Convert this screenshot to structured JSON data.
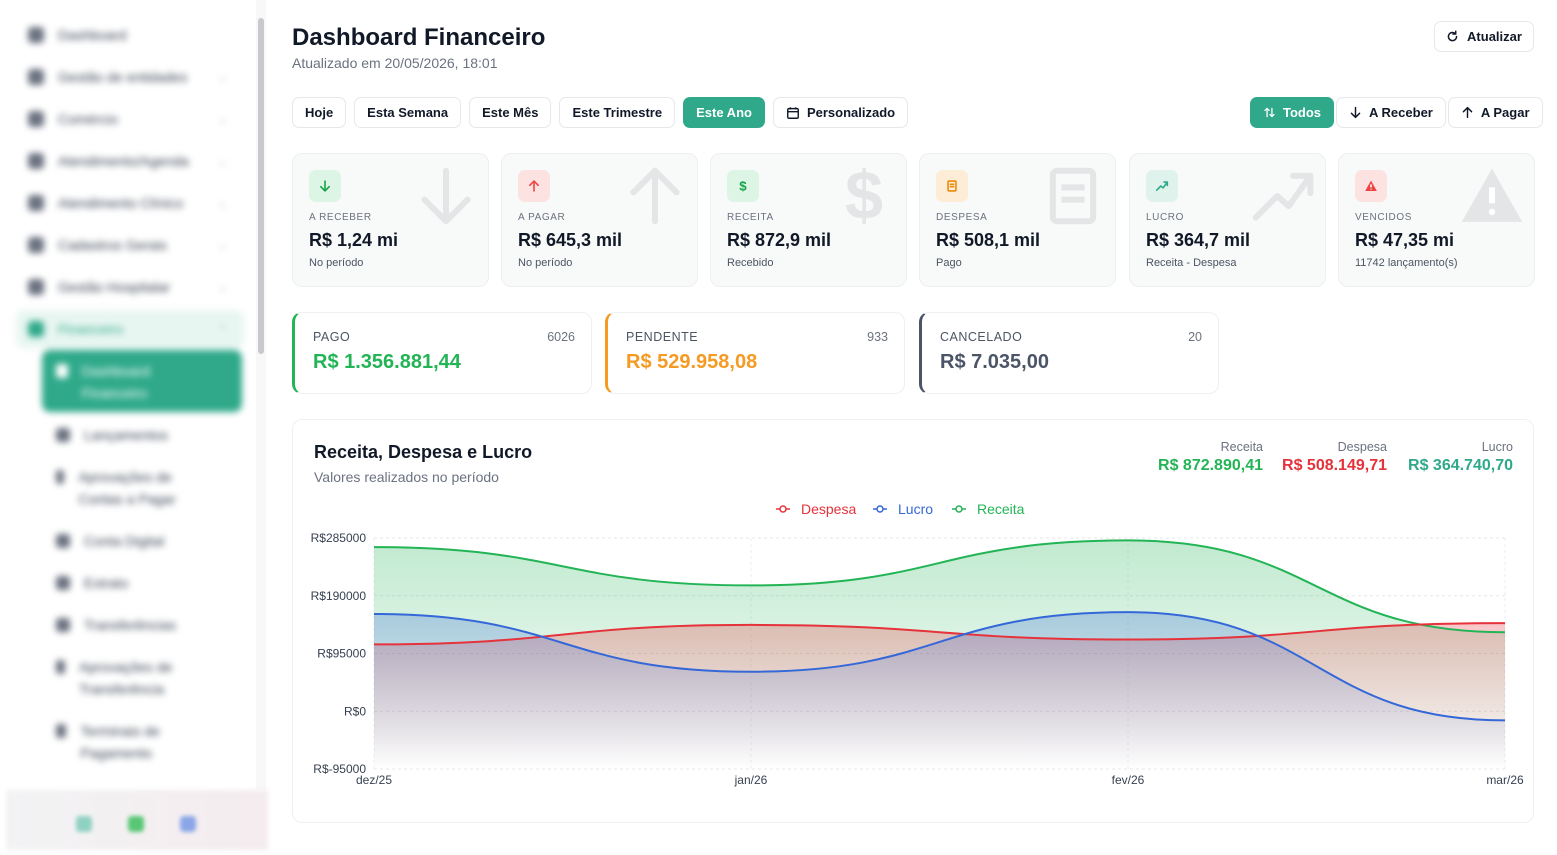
{
  "sidebar": {
    "items": [
      {
        "label": "Dashboard",
        "icon": "grid-icon",
        "has_chevron": false
      },
      {
        "label": "Gestão de entidades",
        "icon": "chart-bars-icon",
        "has_chevron": true
      },
      {
        "label": "Comércio",
        "icon": "store-icon",
        "has_chevron": true
      },
      {
        "label": "Atendimento/Agenda",
        "icon": "headset-icon",
        "has_chevron": true
      },
      {
        "label": "Atendimento Clínico",
        "icon": "clinic-icon",
        "has_chevron": true
      },
      {
        "label": "Cadastros Gerais",
        "icon": "pencil-icon",
        "has_chevron": true
      },
      {
        "label": "Gestão Hospitalar",
        "icon": "hospital-icon",
        "has_chevron": true
      },
      {
        "label": "Financeiro",
        "icon": "dollar-icon",
        "has_chevron": true
      }
    ],
    "sub_items": [
      {
        "label": "Dashboard Financeiro",
        "icon": "grid-icon",
        "active": true
      },
      {
        "label": "Lançamentos",
        "icon": "list-icon"
      },
      {
        "label": "Aprovações de Contas a Pagar",
        "icon": "check-icon"
      },
      {
        "label": "Conta Digital",
        "icon": "wallet-icon"
      },
      {
        "label": "Extrato",
        "icon": "receipt-icon"
      },
      {
        "label": "Transferências",
        "icon": "transfer-icon"
      },
      {
        "label": "Aprovações de Transferência",
        "icon": "shield-icon"
      },
      {
        "label": "Terminais de Pagamento",
        "icon": "terminal-icon"
      }
    ]
  },
  "header": {
    "title": "Dashboard Financeiro",
    "updated": "Atualizado em 20/05/2026, 18:01",
    "refresh_label": "Atualizar"
  },
  "filters": {
    "periods": [
      "Hoje",
      "Esta Semana",
      "Este Mês",
      "Este Trimestre",
      "Este Ano",
      "Personalizado"
    ],
    "active_period": "Este Ano",
    "flows": [
      "Todos",
      "A Receber",
      "A Pagar"
    ],
    "active_flow": "Todos"
  },
  "kpis": [
    {
      "label": "A RECEBER",
      "value": "R$ 1,24 mi",
      "note": "No período",
      "icon": "arrow-down-icon",
      "color": "#16a34a",
      "bg": "#dcf5e5"
    },
    {
      "label": "A PAGAR",
      "value": "R$ 645,3 mil",
      "note": "No período",
      "icon": "arrow-up-icon",
      "color": "#ef4444",
      "bg": "#fde2e2"
    },
    {
      "label": "RECEITA",
      "value": "R$ 872,9 mil",
      "note": "Recebido",
      "icon": "dollar-icon",
      "color": "#16a34a",
      "bg": "#dcf5e5"
    },
    {
      "label": "DESPESA",
      "value": "R$ 508,1 mil",
      "note": "Pago",
      "icon": "receipt-icon",
      "color": "#ea8a0c",
      "bg": "#fdecd6"
    },
    {
      "label": "LUCRO",
      "value": "R$ 364,7 mil",
      "note": "Receita - Despesa",
      "icon": "trend-up-icon",
      "color": "#2fa98a",
      "bg": "#dff2ec"
    },
    {
      "label": "VENCIDOS",
      "value": "R$ 47,35 mi",
      "note": "11742 lançamento(s)",
      "icon": "alert-icon",
      "color": "#ef4444",
      "bg": "#fde2e2"
    }
  ],
  "status_cards": [
    {
      "label": "PAGO",
      "count": "6026",
      "value": "R$ 1.356.881,44",
      "color": "#22b455"
    },
    {
      "label": "PENDENTE",
      "count": "933",
      "value": "R$ 529.958,08",
      "color": "#f59a23"
    },
    {
      "label": "CANCELADO",
      "count": "20",
      "value": "R$ 7.035,00",
      "color": "#4b5567"
    }
  ],
  "chart": {
    "title": "Receita, Despesa e Lucro",
    "subtitle": "Valores realizados no período",
    "totals": [
      {
        "label": "Receita",
        "value": "R$ 872.890,41",
        "color": "#22b455"
      },
      {
        "label": "Despesa",
        "value": "R$ 508.149,71",
        "color": "#e5323b"
      },
      {
        "label": "Lucro",
        "value": "R$ 364.740,70",
        "color": "#2fa98a"
      }
    ]
  },
  "chart_data": {
    "type": "area",
    "x": [
      "dez/25",
      "jan/26",
      "fev/26",
      "mar/26"
    ],
    "y_ticks": [
      "R$285000",
      "R$190000",
      "R$95000",
      "R$0",
      "R$-95000"
    ],
    "ylim": [
      -95000,
      285000
    ],
    "legend_position": "top-center",
    "grid": true,
    "series": [
      {
        "name": "Despesa",
        "color": "#e5323b",
        "values": [
          110000,
          142000,
          118000,
          145000
        ]
      },
      {
        "name": "Lucro",
        "color": "#3468d8",
        "values": [
          160000,
          65000,
          163000,
          -15000
        ]
      },
      {
        "name": "Receita",
        "color": "#22b455",
        "values": [
          270000,
          207000,
          281000,
          130000
        ]
      }
    ]
  }
}
